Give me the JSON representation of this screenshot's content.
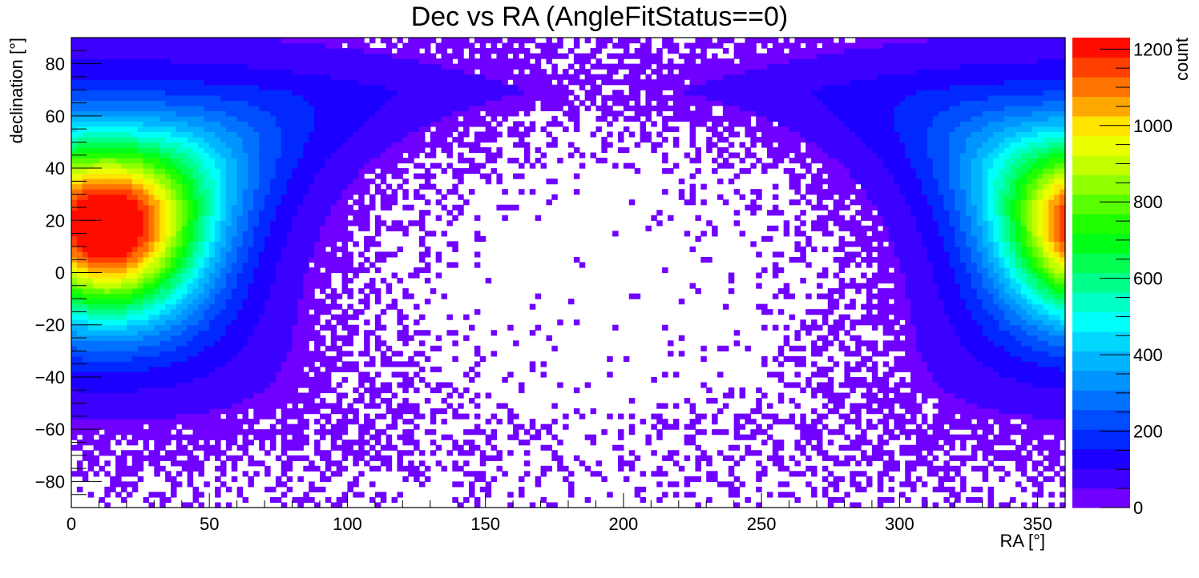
{
  "chart_data": {
    "type": "heatmap",
    "title": "Dec vs RA (AngleFitStatus==0)",
    "xlabel": "RA [°]",
    "ylabel": "declination [°]",
    "zlabel": "count",
    "xlim": [
      0,
      360
    ],
    "ylim": [
      -90,
      90
    ],
    "zlim": [
      0,
      1230
    ],
    "x_ticks": [
      "0",
      "50",
      "100",
      "150",
      "200",
      "250",
      "300",
      "350"
    ],
    "y_ticks": [
      "−80",
      "−60",
      "−40",
      "−20",
      "0",
      "20",
      "40",
      "60",
      "80"
    ],
    "z_ticks": [
      "0",
      "200",
      "400",
      "600",
      "800",
      "1000",
      "1200"
    ],
    "x_tick_values": [
      0,
      50,
      100,
      150,
      200,
      250,
      300,
      350
    ],
    "y_tick_values": [
      -80,
      -60,
      -40,
      -20,
      0,
      20,
      40,
      60,
      80
    ],
    "z_tick_values": [
      0,
      200,
      400,
      600,
      800,
      1000,
      1200
    ],
    "bin_width_deg": 2,
    "peak": {
      "ra": 13,
      "dec": 18,
      "count": 1200
    },
    "colormap": [
      "#7000ff",
      "#3c00ff",
      "#1c00ff",
      "#0028ff",
      "#004cff",
      "#0072ff",
      "#0094ff",
      "#00b4ff",
      "#00d8ff",
      "#00fff8",
      "#00ffc4",
      "#00ff8a",
      "#00ff50",
      "#00ff18",
      "#20ff00",
      "#58ff00",
      "#90ff00",
      "#c4ff00",
      "#ecff00",
      "#ffe400",
      "#ffa800",
      "#ff7400",
      "#ff4000",
      "#ff0c00"
    ],
    "grid": false,
    "legend": "colorbar-right"
  }
}
